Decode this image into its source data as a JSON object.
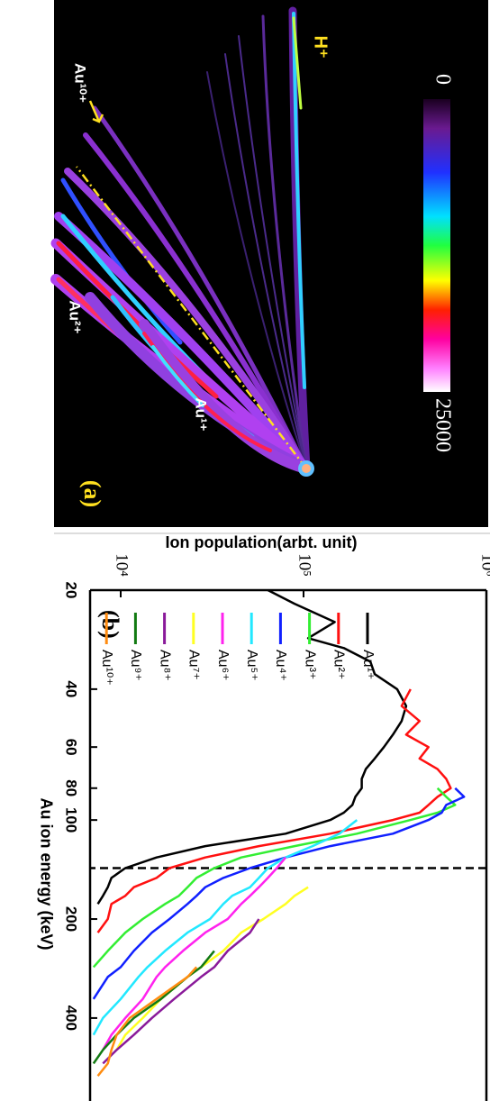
{
  "panel_a": {
    "label": "(a)",
    "colorbar": {
      "min": 0,
      "max": 25000
    },
    "ion_labels": {
      "h": "H⁺",
      "au10": "Au¹⁰⁺",
      "au2": "Au²⁺",
      "au1": "Au¹⁺"
    }
  },
  "chart_data": {
    "type": "line",
    "label": "(b)",
    "x_label": "Au ion energy (keV)",
    "y_label": "Ion population(arbt. unit)",
    "xscale": "log",
    "yscale": "log",
    "xlim": [
      20,
      715
    ],
    "ylim": [
      6800,
      1000000
    ],
    "xticks": [
      20,
      40,
      60,
      80,
      100,
      200,
      400
    ],
    "yticks": [
      {
        "value": 10000,
        "label": "10⁴"
      },
      {
        "value": 100000,
        "label": "10⁵"
      },
      {
        "value": 1000000,
        "label": "10⁶"
      }
    ],
    "vline": 140,
    "x": [
      20,
      22,
      25,
      28,
      30,
      33,
      36,
      40,
      45,
      50,
      55,
      60,
      65,
      70,
      75,
      80,
      85,
      90,
      95,
      100,
      110,
      120,
      130,
      140,
      150,
      160,
      170,
      180,
      200,
      220,
      250,
      280,
      300,
      350,
      400,
      450,
      500,
      550,
      600
    ],
    "series": [
      {
        "name": "Au¹⁺",
        "color": "#000000",
        "values": [
          63800,
          89300,
          148000,
          106000,
          166000,
          232000,
          245000,
          325000,
          364000,
          344000,
          308000,
          275000,
          245000,
          219000,
          208000,
          208000,
          192000,
          185000,
          166000,
          140000,
          79800,
          29000,
          15700,
          10600,
          8900,
          8500,
          8000,
          7500,
          null,
          null,
          null,
          null,
          null,
          null,
          null,
          null,
          null,
          null,
          null
        ]
      },
      {
        "name": "Au²⁺",
        "color": "#ff1010",
        "values": [
          null,
          null,
          null,
          null,
          null,
          null,
          null,
          385000,
          344000,
          431000,
          364000,
          482000,
          431000,
          540000,
          603000,
          638000,
          540000,
          482000,
          431000,
          308000,
          140000,
          57000,
          29000,
          18500,
          15700,
          11800,
          10600,
          8900,
          8500,
          7500,
          null,
          null,
          null,
          null,
          null,
          null,
          null,
          null,
          null
        ]
      },
      {
        "name": "Au³⁺",
        "color": "#33ee33",
        "values": [
          null,
          null,
          null,
          null,
          null,
          null,
          null,
          null,
          null,
          null,
          null,
          null,
          null,
          null,
          null,
          540000,
          603000,
          675000,
          540000,
          385000,
          196000,
          89300,
          45600,
          32500,
          26000,
          23200,
          20800,
          17500,
          13200,
          10600,
          8500,
          7100,
          null,
          null,
          null,
          null,
          null,
          null,
          null
        ]
      },
      {
        "name": "Au⁴⁺",
        "color": "#1020ff",
        "values": [
          null,
          null,
          null,
          null,
          null,
          null,
          null,
          null,
          null,
          null,
          null,
          null,
          null,
          null,
          null,
          675000,
          755000,
          603000,
          570000,
          482000,
          308000,
          140000,
          79800,
          51000,
          36400,
          29000,
          26000,
          23200,
          18500,
          14800,
          11800,
          10000,
          8500,
          7100,
          null,
          null,
          null,
          null,
          null
        ]
      },
      {
        "name": "Au⁵⁺",
        "color": "#22e8ff",
        "values": [
          null,
          null,
          null,
          null,
          null,
          null,
          null,
          null,
          null,
          null,
          null,
          null,
          null,
          null,
          null,
          null,
          null,
          null,
          null,
          196000,
          157000,
          112000,
          79800,
          63800,
          57000,
          51000,
          40700,
          36400,
          30800,
          23200,
          17500,
          14000,
          12500,
          10000,
          8000,
          7100,
          null,
          null,
          null
        ]
      },
      {
        "name": "Au⁶⁺",
        "color": "#ff22ee",
        "values": [
          null,
          null,
          null,
          null,
          null,
          null,
          null,
          null,
          null,
          null,
          null,
          null,
          null,
          null,
          null,
          null,
          null,
          null,
          null,
          null,
          null,
          null,
          79800,
          71400,
          63800,
          57000,
          51000,
          45600,
          38500,
          29000,
          21900,
          17500,
          15700,
          13200,
          10600,
          8900,
          8000,
          null,
          null
        ]
      },
      {
        "name": "Au⁷⁺",
        "color": "#ffff22",
        "values": [
          null,
          null,
          null,
          null,
          null,
          null,
          null,
          null,
          null,
          null,
          null,
          null,
          null,
          null,
          null,
          null,
          null,
          null,
          null,
          null,
          null,
          null,
          null,
          null,
          null,
          106000,
          89300,
          79800,
          60300,
          45600,
          36400,
          27500,
          23200,
          16600,
          13200,
          10600,
          9500,
          null,
          null
        ]
      },
      {
        "name": "Au⁸⁺",
        "color": "#8a1a9a",
        "values": [
          null,
          null,
          null,
          null,
          null,
          null,
          null,
          null,
          null,
          null,
          null,
          null,
          null,
          null,
          null,
          null,
          null,
          null,
          null,
          null,
          null,
          null,
          null,
          null,
          null,
          null,
          null,
          null,
          57000,
          51000,
          38500,
          32500,
          27500,
          19600,
          14800,
          11800,
          9500,
          8000,
          null
        ]
      },
      {
        "name": "Au⁹⁺",
        "color": "#127a12",
        "values": [
          null,
          null,
          null,
          null,
          null,
          null,
          null,
          null,
          null,
          null,
          null,
          null,
          null,
          null,
          null,
          null,
          null,
          null,
          null,
          null,
          null,
          null,
          null,
          null,
          null,
          null,
          null,
          null,
          null,
          null,
          32500,
          27500,
          23200,
          16600,
          11800,
          9500,
          8000,
          7100,
          null
        ]
      },
      {
        "name": "Au¹⁰⁺",
        "color": "#ff8c10",
        "values": [
          null,
          null,
          null,
          null,
          null,
          null,
          null,
          null,
          null,
          null,
          null,
          null,
          null,
          null,
          null,
          null,
          null,
          null,
          null,
          null,
          null,
          null,
          null,
          null,
          null,
          null,
          null,
          null,
          null,
          null,
          null,
          26000,
          23200,
          15700,
          11200,
          9500,
          8900,
          8500,
          7500
        ]
      }
    ]
  }
}
